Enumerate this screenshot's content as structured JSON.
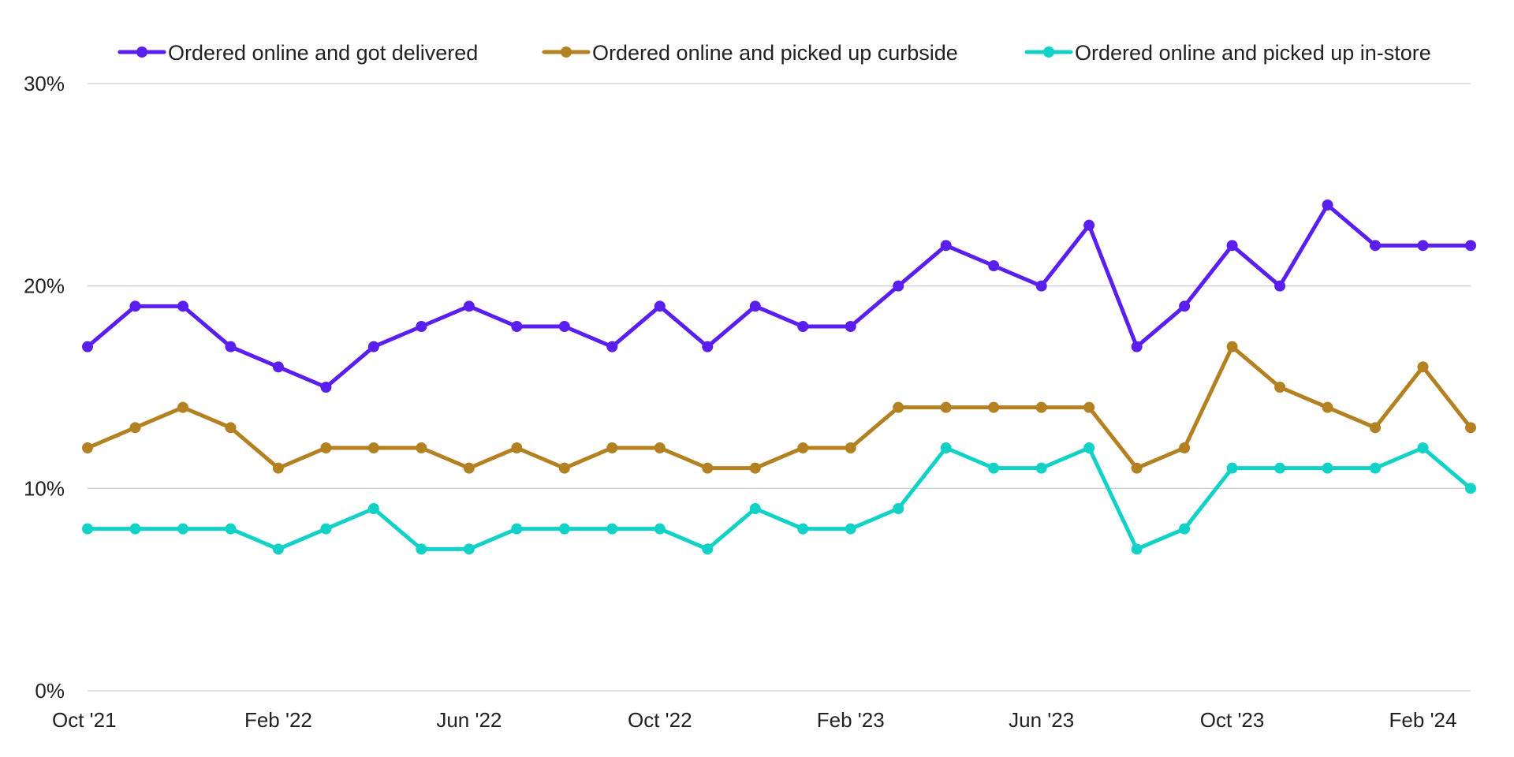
{
  "chart_data": {
    "type": "line",
    "title": "",
    "xlabel": "",
    "ylabel": "",
    "ylim": [
      0,
      30
    ],
    "yticks": [
      0,
      10,
      20,
      30
    ],
    "ytick_labels": [
      "0%",
      "10%",
      "20%",
      "30%"
    ],
    "x_tick_labels": [
      "Oct '21",
      "Feb '22",
      "Jun '22",
      "Oct '22",
      "Feb '23",
      "Jun '23",
      "Oct '23",
      "Feb '24"
    ],
    "categories": [
      "Oct '21",
      "Nov '21",
      "Dec '21",
      "Jan '22",
      "Feb '22",
      "Mar '22",
      "Apr '22",
      "May '22",
      "Jun '22",
      "Jul '22",
      "Aug '22",
      "Sep '22",
      "Oct '22",
      "Nov '22",
      "Dec '22",
      "Jan '23",
      "Feb '23",
      "Mar '23",
      "Apr '23",
      "May '23",
      "Jun '23",
      "Jul '23",
      "Aug '23",
      "Sep '23",
      "Oct '23",
      "Nov '23",
      "Dec '23",
      "Jan '24",
      "Feb '24",
      "Mar '24"
    ],
    "grid": true,
    "legend_position": "top",
    "series": [
      {
        "name": "Ordered online and got delivered",
        "color": "#5a1eef",
        "values": [
          17,
          19,
          19,
          17,
          16,
          15,
          17,
          18,
          19,
          18,
          18,
          17,
          19,
          17,
          19,
          18,
          18,
          20,
          22,
          21,
          20,
          23,
          17,
          19,
          22,
          20,
          24,
          22,
          22,
          22
        ]
      },
      {
        "name": "Ordered online and picked up curbside",
        "color": "#b48122",
        "values": [
          12,
          13,
          14,
          13,
          11,
          12,
          12,
          12,
          11,
          12,
          11,
          12,
          12,
          11,
          11,
          12,
          12,
          14,
          14,
          14,
          14,
          14,
          11,
          12,
          17,
          15,
          14,
          13,
          16,
          13
        ]
      },
      {
        "name": "Ordered online and picked up in-store",
        "color": "#12d2c8",
        "values": [
          8,
          8,
          8,
          8,
          7,
          8,
          9,
          7,
          7,
          8,
          8,
          8,
          8,
          7,
          9,
          8,
          8,
          9,
          12,
          11,
          11,
          12,
          7,
          8,
          11,
          11,
          11,
          11,
          12,
          10
        ]
      }
    ]
  }
}
